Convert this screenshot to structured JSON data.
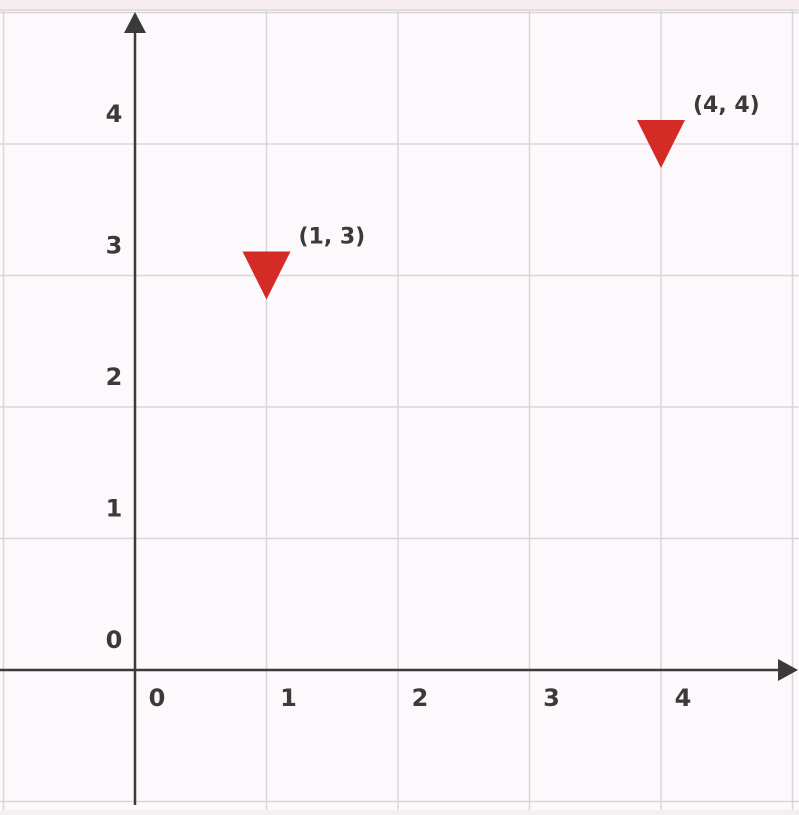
{
  "chart_data": {
    "type": "scatter",
    "title": "",
    "xlabel": "",
    "ylabel": "",
    "xlim": [
      -1,
      5
    ],
    "ylim": [
      -1,
      5
    ],
    "grid": true,
    "x_ticks": [
      "0",
      "1",
      "2",
      "3",
      "4"
    ],
    "y_ticks": [
      "0",
      "1",
      "2",
      "3",
      "4"
    ],
    "series": [
      {
        "marker": "triangle-down",
        "color": "#d42b27",
        "points": [
          {
            "x": 1,
            "y": 3,
            "label": "(1, 3)"
          },
          {
            "x": 4,
            "y": 4,
            "label": "(4, 4)"
          }
        ]
      }
    ]
  },
  "colors": {
    "plot_background": "#fcf8fb",
    "grid": "#d9d6da",
    "axis": "#3a3a3a",
    "marker": "#d42b27"
  }
}
